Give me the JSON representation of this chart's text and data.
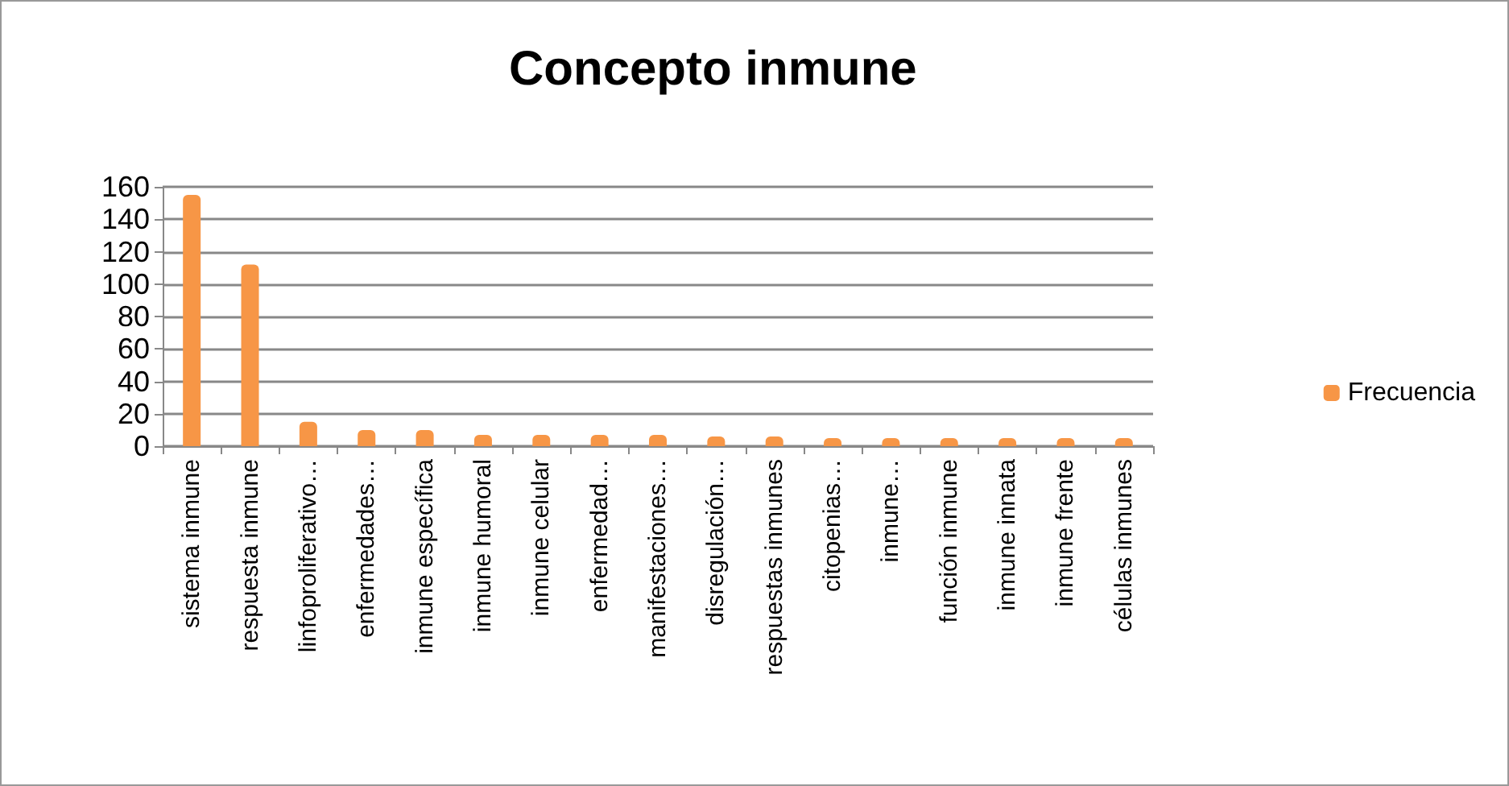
{
  "chart_data": {
    "type": "bar",
    "title": "Concepto inmune",
    "categories": [
      "sistema inmune",
      "respuesta inmune",
      "linfoproliferativo…",
      "enfermedades…",
      "inmune específica",
      "inmune humoral",
      "inmune celular",
      "enfermedad…",
      "manifestaciones…",
      "disregulación…",
      "respuestas inmunes",
      "citopenias…",
      "inmune…",
      "función inmune",
      "inmune innata",
      "inmune frente",
      "células inmunes"
    ],
    "series": [
      {
        "name": "Frecuencia",
        "color": "#f79646",
        "values": [
          155,
          112,
          15,
          10,
          10,
          7,
          7,
          7,
          7,
          6,
          6,
          5,
          5,
          5,
          5,
          5,
          5
        ]
      }
    ],
    "ylim": [
      0,
      160
    ],
    "yticks": [
      0,
      20,
      40,
      60,
      80,
      100,
      120,
      140,
      160
    ],
    "grid": "y",
    "legend": "right"
  }
}
